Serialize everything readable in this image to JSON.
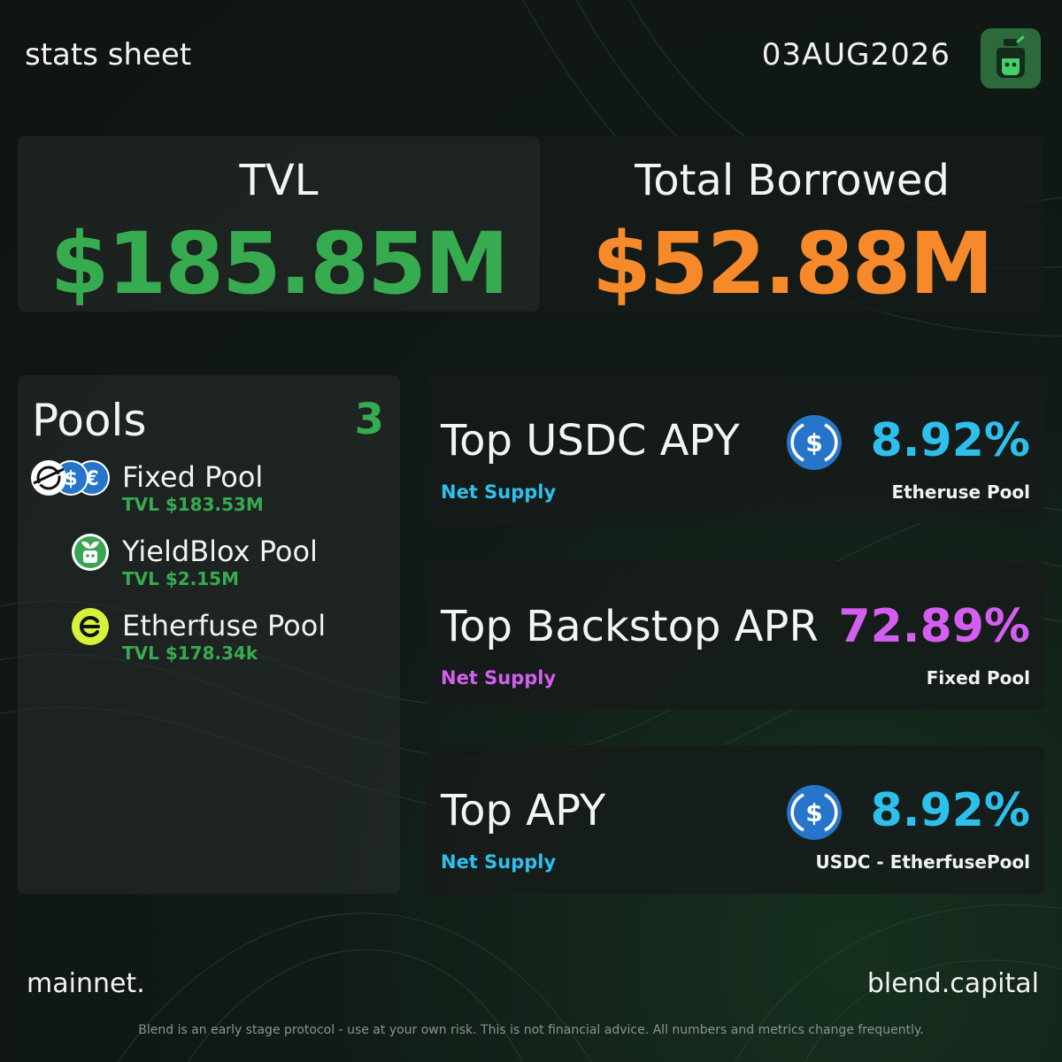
{
  "header": {
    "title": "stats sheet",
    "date": "03AUG2026",
    "logo_icon": "potion-bottle-icon"
  },
  "summary": {
    "tvl_label": "TVL",
    "tvl_value": "$185.85M",
    "borrowed_label": "Total Borrowed",
    "borrowed_value": "$52.88M"
  },
  "pools": {
    "title": "Pools",
    "count": "3",
    "items": [
      {
        "name": "Fixed Pool",
        "tvl": "TVL $183.53M",
        "icon": "stellar-usdc-eurc-icons"
      },
      {
        "name": "YieldBlox Pool",
        "tvl": "TVL $2.15M",
        "icon": "yieldblox-icon"
      },
      {
        "name": "Etherfuse Pool",
        "tvl": "TVL $178.34k",
        "icon": "etherfuse-icon"
      }
    ]
  },
  "stats": [
    {
      "title": "Top USDC APY",
      "subtitle": "Net Supply",
      "value": "8.92%",
      "pool": "Etheruse Pool",
      "icon": "usdc-icon"
    },
    {
      "title": "Top Backstop APR",
      "subtitle": "Net Supply",
      "value": "72.89%",
      "pool": "Fixed Pool",
      "icon": ""
    },
    {
      "title": "Top APY",
      "subtitle": "Net Supply",
      "value": "8.92%",
      "pool": "USDC - EtherfusePool",
      "icon": "usdc-icon"
    }
  ],
  "footer": {
    "network": "mainnet.",
    "site": "blend.capital",
    "disclaimer": "Blend is an early stage protocol - use at your own risk. This is not financial advice. All numbers and metrics change frequently."
  },
  "colors": {
    "green": "#37ab4f",
    "orange": "#f68a2a",
    "cyan": "#2ec0ec",
    "purple": "#d45ef0",
    "usdc": "#2775ca"
  }
}
